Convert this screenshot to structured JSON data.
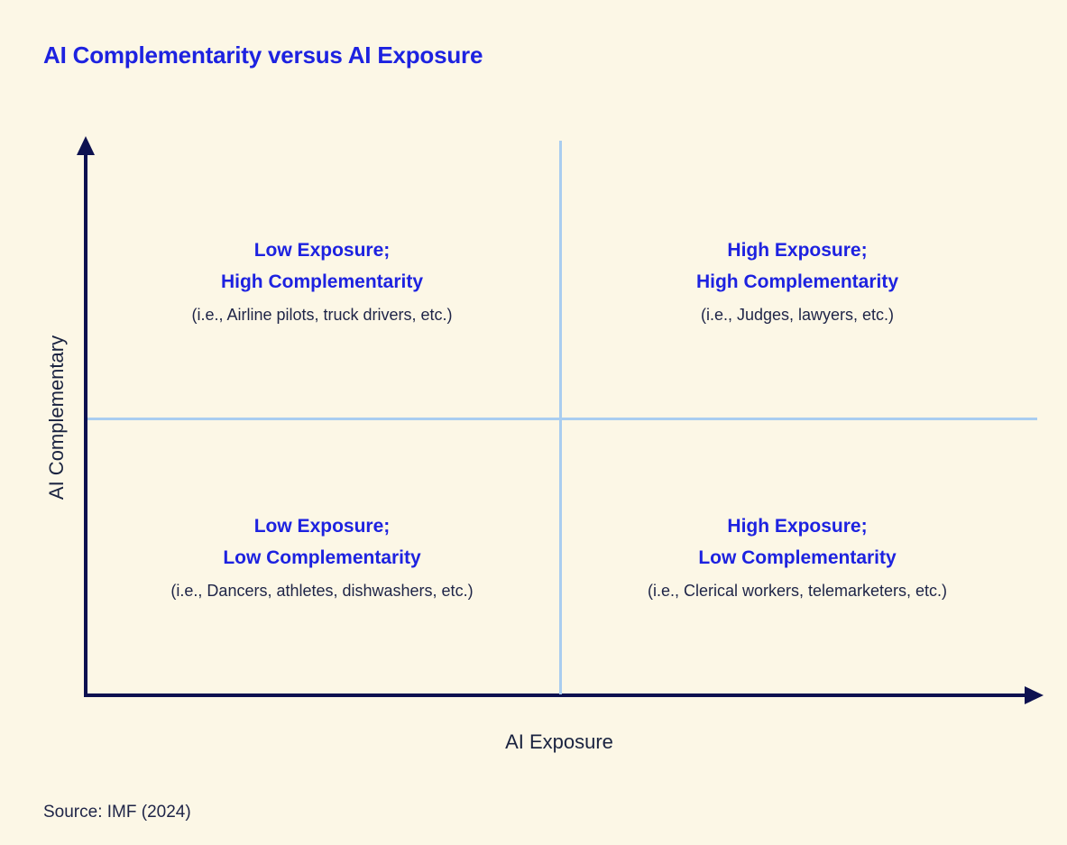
{
  "header": {
    "title": "AI Complementarity versus AI Exposure"
  },
  "chart": {
    "type": "quadrant",
    "x_axis_label": "AI Exposure",
    "y_axis_label": "AI Complementary",
    "quadrants": [
      {
        "id": "top-left",
        "heading_line1": "Low Exposure;",
        "heading_line2": "High Complementarity",
        "examples": "(i.e., Airline pilots, truck drivers, etc.)"
      },
      {
        "id": "top-right",
        "heading_line1": "High Exposure;",
        "heading_line2": "High Complementarity",
        "examples": "(i.e., Judges, lawyers, etc.)"
      },
      {
        "id": "bottom-left",
        "heading_line1": "Low Exposure;",
        "heading_line2": "Low Complementarity",
        "examples": "(i.e., Dancers, athletes, dishwashers, etc.)"
      },
      {
        "id": "bottom-right",
        "heading_line1": "High Exposure;",
        "heading_line2": "Low Complementarity",
        "examples": "(i.e., Clerical workers, telemarketers, etc.)"
      }
    ],
    "colors": {
      "background": "#FCF7E6",
      "accent_blue": "#1D22E0",
      "navy_text": "#1E2447",
      "axis": "#0D1150",
      "divider": "#A9CDF0"
    }
  },
  "footer": {
    "source": "Source: IMF (2024)"
  }
}
